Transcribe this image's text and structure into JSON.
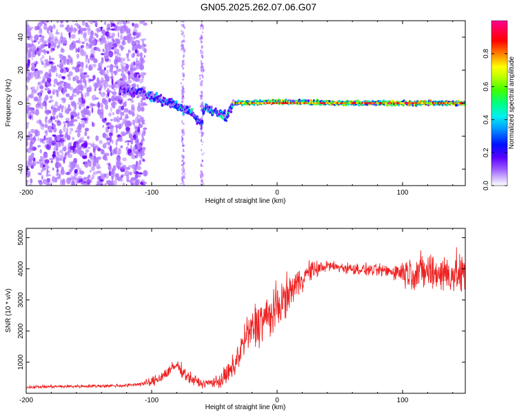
{
  "title": "GN05.2025.262.07.06.G07",
  "chart_data": [
    {
      "type": "heatmap",
      "xlabel": "Height of straight line (km)",
      "ylabel": "Frequency (Hz)",
      "xlim": [
        -200,
        150
      ],
      "ylim": [
        -50,
        50
      ],
      "xticks": [
        -200,
        -100,
        0,
        100
      ],
      "xtick_labels": [
        "-200",
        "-100",
        "0",
        "100"
      ],
      "yticks": [
        -40,
        -20,
        0,
        20,
        40
      ],
      "ytick_labels": [
        "-40",
        "-20",
        "0",
        "20",
        "40"
      ],
      "colorbar": {
        "label": "Normalized spectral amplitude",
        "range": [
          0,
          1
        ],
        "ticks": [
          0,
          0.2,
          0.4,
          0.6,
          0.8
        ],
        "tick_labels": [
          "0.0",
          "0.2",
          "0.4",
          "0.6",
          "0.8"
        ],
        "colors": [
          "#ffffff",
          "#b07aff",
          "#6a00ff",
          "#0010ff",
          "#00c8ff",
          "#00ff80",
          "#40ff00",
          "#ffff00",
          "#ff8000",
          "#ff0000",
          "#ff0080"
        ]
      },
      "features": {
        "diffuse_noise_x_range": [
          -200,
          -105
        ],
        "ridge": [
          {
            "x": -115,
            "f": 8
          },
          {
            "x": -100,
            "f": 4
          },
          {
            "x": -85,
            "f": 0
          },
          {
            "x": -70,
            "f": -5
          },
          {
            "x": -60,
            "f": -12
          },
          {
            "x": -58,
            "f": -2
          },
          {
            "x": -50,
            "f": -5
          },
          {
            "x": -40,
            "f": -8
          },
          {
            "x": -35,
            "f": 0
          },
          {
            "x": 0,
            "f": 1
          },
          {
            "x": 50,
            "f": 0
          },
          {
            "x": 100,
            "f": 0
          },
          {
            "x": 150,
            "f": 0
          }
        ],
        "strong_carrier_x_range": [
          -35,
          150
        ],
        "strong_carrier_frequency": 0
      }
    },
    {
      "type": "line",
      "xlabel": "Height of straight line (km)",
      "ylabel": "SNR (10 * v/v)",
      "xlim": [
        -200,
        150
      ],
      "ylim": [
        0,
        5300
      ],
      "xticks": [
        -200,
        -100,
        0,
        100
      ],
      "xtick_labels": [
        "-200",
        "-100",
        "0",
        "100"
      ],
      "yticks": [
        1000,
        2000,
        3000,
        4000,
        5000
      ],
      "ytick_labels": [
        "1000",
        "2000",
        "3000",
        "4000",
        "5000"
      ],
      "series": [
        {
          "name": "SNR",
          "color": "#ee2222",
          "trend": [
            {
              "x": -200,
              "y": 200
            },
            {
              "x": -120,
              "y": 250
            },
            {
              "x": -100,
              "y": 350
            },
            {
              "x": -90,
              "y": 600
            },
            {
              "x": -80,
              "y": 900
            },
            {
              "x": -70,
              "y": 500
            },
            {
              "x": -60,
              "y": 300
            },
            {
              "x": -45,
              "y": 400
            },
            {
              "x": -35,
              "y": 800
            },
            {
              "x": -25,
              "y": 1800
            },
            {
              "x": -15,
              "y": 2300
            },
            {
              "x": -5,
              "y": 2500
            },
            {
              "x": 5,
              "y": 3000
            },
            {
              "x": 15,
              "y": 3500
            },
            {
              "x": 25,
              "y": 3900
            },
            {
              "x": 40,
              "y": 4100
            },
            {
              "x": 60,
              "y": 4000
            },
            {
              "x": 80,
              "y": 3950
            },
            {
              "x": 100,
              "y": 3900
            },
            {
              "x": 120,
              "y": 3900
            },
            {
              "x": 150,
              "y": 3800
            }
          ],
          "spread": [
            {
              "x": -200,
              "y": 70
            },
            {
              "x": -110,
              "y": 90
            },
            {
              "x": -95,
              "y": 300
            },
            {
              "x": -70,
              "y": 300
            },
            {
              "x": -55,
              "y": 150
            },
            {
              "x": -40,
              "y": 500
            },
            {
              "x": -10,
              "y": 1300
            },
            {
              "x": 20,
              "y": 600
            },
            {
              "x": 40,
              "y": 250
            },
            {
              "x": 90,
              "y": 300
            },
            {
              "x": 110,
              "y": 900
            },
            {
              "x": 150,
              "y": 1000
            }
          ]
        }
      ]
    }
  ]
}
